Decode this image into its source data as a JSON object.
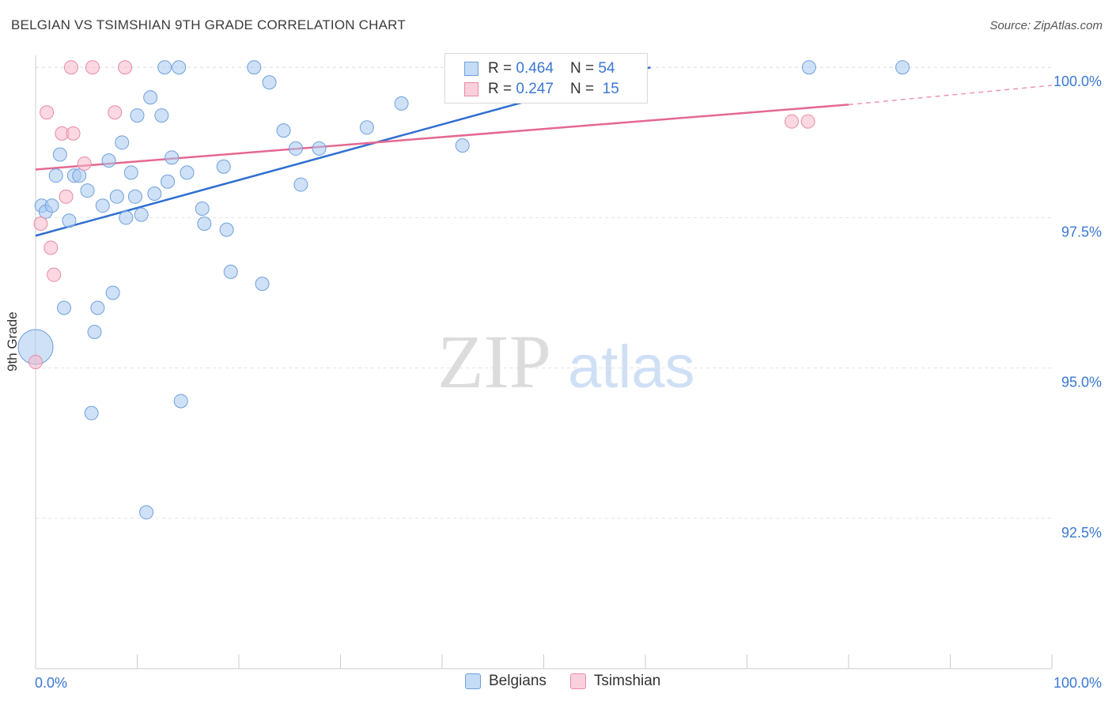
{
  "header": {
    "title": "BELGIAN VS TSIMSHIAN 9TH GRADE CORRELATION CHART",
    "source": "Source: ZipAtlas.com"
  },
  "watermark": {
    "zip": "ZIP",
    "atlas": "atlas"
  },
  "legend_top": {
    "rows": [
      {
        "r_label": "R = ",
        "r_value": "0.464",
        "n_label": "N = ",
        "n_value": "54",
        "color": "#a8c8f0"
      },
      {
        "r_label": "R = ",
        "r_value": "0.247",
        "n_label": "N = ",
        "n_value": "15",
        "color": "#f7b8cb"
      }
    ]
  },
  "legend_bottom": [
    {
      "label": "Belgians",
      "color": "#a8c8f0"
    },
    {
      "label": "Tsimshian",
      "color": "#f7b8cb"
    }
  ],
  "chart_data": {
    "type": "scatter",
    "title": "BELGIAN VS TSIMSHIAN 9TH GRADE CORRELATION CHART",
    "xlabel": "",
    "ylabel": "9th Grade",
    "xlim": [
      0,
      100
    ],
    "ylim": [
      90.0,
      100.2
    ],
    "x_tick_labels": [
      "0.0%",
      "100.0%"
    ],
    "y_ticks": [
      92.5,
      95.0,
      97.5,
      100.0
    ],
    "y_tick_labels": [
      "92.5%",
      "95.0%",
      "97.5%",
      "100.0%"
    ],
    "grid": true,
    "legend_position": "top-center",
    "series": [
      {
        "name": "Belgians",
        "color": "#a8c8f0",
        "stroke": "#6fa0dc",
        "points": [
          [
            0.6,
            97.7
          ],
          [
            1.0,
            97.6
          ],
          [
            1.6,
            97.7
          ],
          [
            2.0,
            98.2
          ],
          [
            2.4,
            98.55
          ],
          [
            2.8,
            96.0
          ],
          [
            3.3,
            97.45
          ],
          [
            3.8,
            98.2
          ],
          [
            4.3,
            98.2
          ],
          [
            5.1,
            97.95
          ],
          [
            5.5,
            94.25
          ],
          [
            5.8,
            95.6
          ],
          [
            6.1,
            96.0
          ],
          [
            6.6,
            97.7
          ],
          [
            7.2,
            98.45
          ],
          [
            7.6,
            96.25
          ],
          [
            8.0,
            97.85
          ],
          [
            8.5,
            98.75
          ],
          [
            8.9,
            97.5
          ],
          [
            9.4,
            98.25
          ],
          [
            9.8,
            97.85
          ],
          [
            10.0,
            99.2
          ],
          [
            10.4,
            97.55
          ],
          [
            10.9,
            92.6
          ],
          [
            11.3,
            99.5
          ],
          [
            11.7,
            97.9
          ],
          [
            12.4,
            99.2
          ],
          [
            12.7,
            100.0
          ],
          [
            13.0,
            98.1
          ],
          [
            13.4,
            98.5
          ],
          [
            14.1,
            100.0
          ],
          [
            14.3,
            94.45
          ],
          [
            14.9,
            98.25
          ],
          [
            16.4,
            97.65
          ],
          [
            16.6,
            97.4
          ],
          [
            18.5,
            98.35
          ],
          [
            18.8,
            97.3
          ],
          [
            19.2,
            96.6
          ],
          [
            21.5,
            100.0
          ],
          [
            22.3,
            96.4
          ],
          [
            23.0,
            99.75
          ],
          [
            24.4,
            98.95
          ],
          [
            25.6,
            98.65
          ],
          [
            26.1,
            98.05
          ],
          [
            27.9,
            98.65
          ],
          [
            32.6,
            99.0
          ],
          [
            36.0,
            99.4
          ],
          [
            42.0,
            98.7
          ],
          [
            43.1,
            100.0
          ],
          [
            48.3,
            100.0
          ],
          [
            52.4,
            100.0
          ],
          [
            76.1,
            100.0
          ],
          [
            85.3,
            100.0
          ],
          [
            0.0,
            95.35
          ]
        ]
      },
      {
        "name": "Tsimshian",
        "color": "#f7b8cb",
        "stroke": "#e88aa6",
        "points": [
          [
            0.0,
            95.1
          ],
          [
            0.5,
            97.4
          ],
          [
            1.1,
            99.25
          ],
          [
            1.5,
            97.0
          ],
          [
            1.8,
            96.55
          ],
          [
            2.6,
            98.9
          ],
          [
            3.0,
            97.85
          ],
          [
            3.5,
            100.0
          ],
          [
            3.7,
            98.9
          ],
          [
            4.8,
            98.4
          ],
          [
            5.6,
            100.0
          ],
          [
            7.8,
            99.25
          ],
          [
            8.8,
            100.0
          ],
          [
            74.4,
            99.1
          ],
          [
            76.0,
            99.1
          ]
        ]
      }
    ],
    "trendlines": [
      {
        "series": "Belgians",
        "color": "#2f6fd0",
        "x0": 0,
        "y0": 97.2,
        "x1": 60.5,
        "y1": 100.0,
        "dashed_to_x": 61.0
      },
      {
        "series": "Tsimshian",
        "color": "#e56890",
        "x0": 0,
        "y0": 98.3,
        "x1": 80.0,
        "y1": 99.38,
        "dashed_to_x": 100.0,
        "dashed_y": 99.7
      }
    ]
  }
}
